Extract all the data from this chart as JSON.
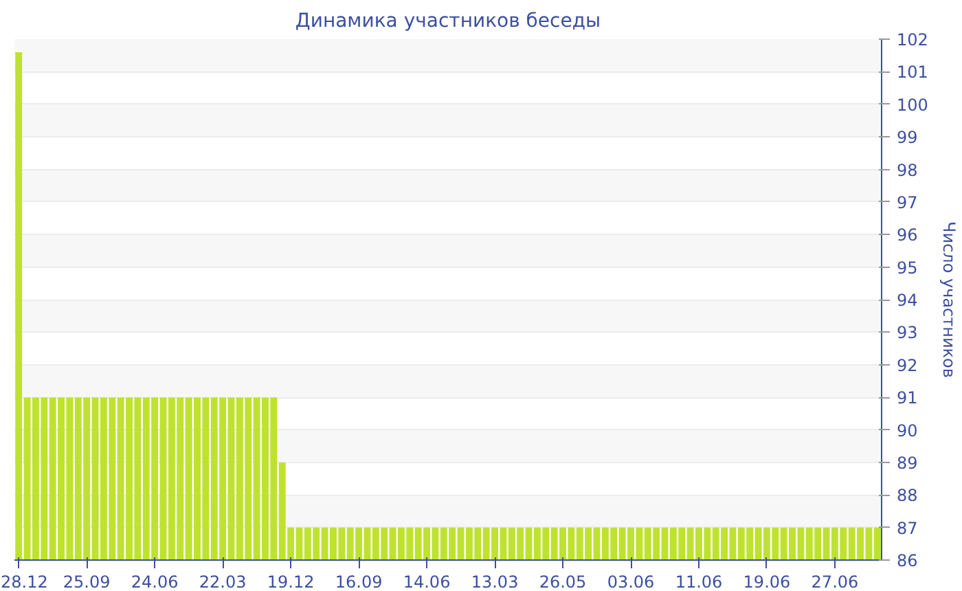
{
  "chart_data": {
    "type": "bar",
    "title": "Динамика участников беседы",
    "ylabel": "Число участников",
    "categories": [
      "28.12",
      null,
      null,
      null,
      null,
      null,
      null,
      null,
      "25.09",
      null,
      null,
      null,
      null,
      null,
      null,
      null,
      "24.06",
      null,
      null,
      null,
      null,
      null,
      null,
      null,
      "22.03",
      null,
      null,
      null,
      null,
      null,
      null,
      null,
      "19.12",
      null,
      null,
      null,
      null,
      null,
      null,
      null,
      "16.09",
      null,
      null,
      null,
      null,
      null,
      null,
      null,
      "14.06",
      null,
      null,
      null,
      null,
      null,
      null,
      null,
      "13.03",
      null,
      null,
      null,
      null,
      null,
      null,
      null,
      "26.05",
      null,
      null,
      null,
      null,
      null,
      null,
      null,
      "03.06",
      null,
      null,
      null,
      null,
      null,
      null,
      null,
      "11.06",
      null,
      null,
      null,
      null,
      null,
      null,
      null,
      "19.06",
      null,
      null,
      null,
      null,
      null,
      null,
      null,
      "27.06",
      null,
      null,
      null,
      null,
      null
    ],
    "values": [
      101.6,
      91,
      91,
      91,
      91,
      91,
      91,
      91,
      91,
      91,
      91,
      91,
      91,
      91,
      91,
      91,
      91,
      91,
      91,
      91,
      91,
      91,
      91,
      91,
      91,
      91,
      91,
      91,
      91,
      91,
      91,
      89,
      87,
      87,
      87,
      87,
      87,
      87,
      87,
      87,
      87,
      87,
      87,
      87,
      87,
      87,
      87,
      87,
      87,
      87,
      87,
      87,
      87,
      87,
      87,
      87,
      87,
      87,
      87,
      87,
      87,
      87,
      87,
      87,
      87,
      87,
      87,
      87,
      87,
      87,
      87,
      87,
      87,
      87,
      87,
      87,
      87,
      87,
      87,
      87,
      87,
      87,
      87,
      87,
      87,
      87,
      87,
      87,
      87,
      87,
      87,
      87,
      87,
      87,
      87,
      87,
      87,
      87,
      87,
      87,
      87,
      87
    ],
    "color": "#bfe22f",
    "ylim": [
      86,
      102
    ],
    "yticks": [
      86,
      87,
      88,
      89,
      90,
      91,
      92,
      93,
      94,
      95,
      96,
      97,
      98,
      99,
      100,
      101,
      102
    ],
    "grid": "y"
  }
}
